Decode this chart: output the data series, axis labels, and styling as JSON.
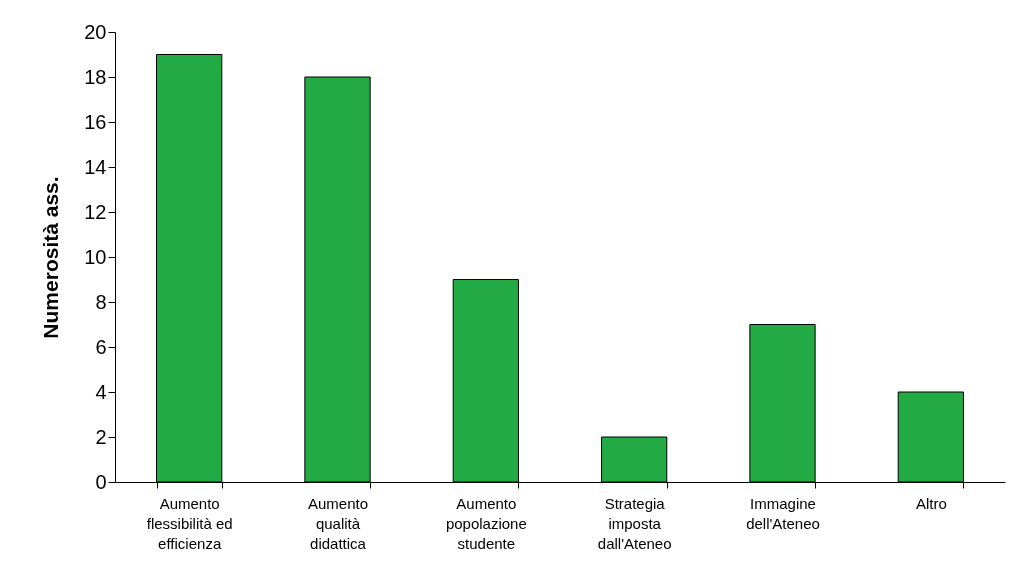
{
  "chart_data": {
    "type": "bar",
    "ylabel": "Numerosità ass.",
    "categories": [
      "Aumento\nflessibilità ed\nefficienza",
      "Aumento\nqualità\ndidattica",
      "Aumento\npopolazione\nstudente",
      "Strategia\nimposta\ndall'Ateneo",
      "Immagine\ndell'Ateneo",
      "Altro"
    ],
    "values": [
      19,
      18,
      9,
      2,
      7,
      4
    ],
    "color": "#22aa44",
    "ylim": [
      0,
      20
    ],
    "yticks": [
      0,
      2,
      4,
      6,
      8,
      10,
      12,
      14,
      16,
      18,
      20
    ],
    "grid": false
  }
}
